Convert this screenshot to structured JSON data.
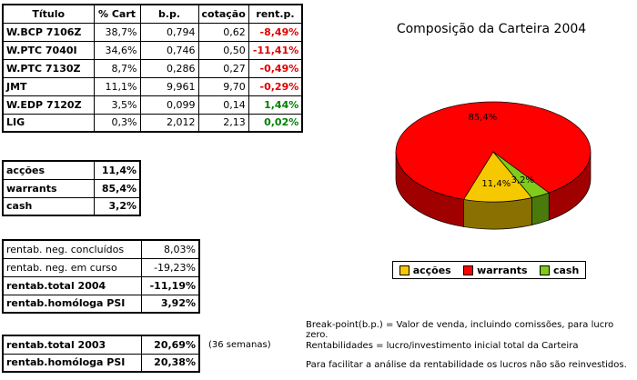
{
  "portfolio": {
    "headers": [
      "Título",
      "% Cart",
      "b.p.",
      "cotação",
      "rent.p."
    ],
    "rows": [
      {
        "titulo": "W.BCP 7106Z",
        "cart": "38,7%",
        "bp": "0,794",
        "cotacao": "0,62",
        "rent": "-8,49%",
        "sign": "neg"
      },
      {
        "titulo": "W.PTC 7040I",
        "cart": "34,6%",
        "bp": "0,746",
        "cotacao": "0,50",
        "rent": "-11,41%",
        "sign": "neg"
      },
      {
        "titulo": "W.PTC 7130Z",
        "cart": "8,7%",
        "bp": "0,286",
        "cotacao": "0,27",
        "rent": "-0,49%",
        "sign": "neg"
      },
      {
        "titulo": "JMT",
        "cart": "11,1%",
        "bp": "9,961",
        "cotacao": "9,70",
        "rent": "-0,29%",
        "sign": "neg"
      },
      {
        "titulo": "W.EDP 7120Z",
        "cart": "3,5%",
        "bp": "0,099",
        "cotacao": "0,14",
        "rent": "1,44%",
        "sign": "pos"
      },
      {
        "titulo": "LIG",
        "cart": "0,3%",
        "bp": "2,012",
        "cotacao": "2,13",
        "rent": "0,02%",
        "sign": "pos"
      }
    ]
  },
  "allocation": [
    {
      "label": "acções",
      "value": "11,4%"
    },
    {
      "label": "warrants",
      "value": "85,4%"
    },
    {
      "label": "cash",
      "value": "3,2%"
    }
  ],
  "rentab": [
    {
      "label": "rentab. neg. concluídos",
      "value": "8,03%",
      "bold": false
    },
    {
      "label": "rentab. neg. em curso",
      "value": "-19,23%",
      "bold": false
    },
    {
      "label": "rentab.total 2004",
      "value": "-11,19%",
      "bold": true
    },
    {
      "label": "rentab.homóloga PSI",
      "value": "3,92%",
      "bold": true
    }
  ],
  "rentab2003": [
    {
      "label": "rentab.total 2003",
      "value": "20,69%"
    },
    {
      "label": "rentab.homóloga PSI",
      "value": "20,38%"
    }
  ],
  "note_weeks": "(36 semanas)",
  "notes": [
    "Break-point(b.p.) = Valor de venda, incluindo comissões, para lucro zero.",
    "Rentabilidades = lucro/investimento inicial total da Carteira",
    "Para facilitar a análise da rentabilidade os lucros não são reinvestidos."
  ],
  "colors": {
    "negative": "#e00000",
    "positive": "#008000",
    "accoes": "#f5c800",
    "warrants": "#ff0000",
    "cash": "#7fcc1a"
  },
  "chart_data": {
    "type": "pie",
    "title": "Composição da Carteira 2004",
    "categories": [
      "acções",
      "warrants",
      "cash"
    ],
    "values": [
      11.4,
      85.4,
      3.2
    ],
    "labels": [
      "11,4%",
      "85,4%",
      "3,2%"
    ],
    "colors": [
      "#f5c800",
      "#ff0000",
      "#7fcc1a"
    ],
    "legend": "bottom",
    "style": "3d"
  }
}
